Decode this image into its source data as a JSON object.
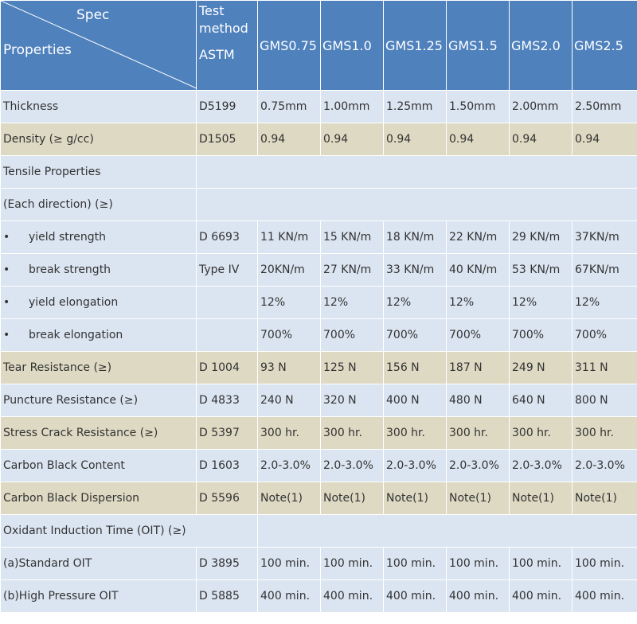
{
  "header": {
    "spec": "Spec",
    "properties": "Properties",
    "test_method_1": "Test",
    "test_method_2": "method",
    "test_method_3": "ASTM",
    "grades": [
      "GMS0.75",
      "GMS1.0",
      "GMS1.25",
      "GMS1.5",
      "GMS2.0",
      "GMS2.5"
    ]
  },
  "rows": {
    "thickness": {
      "label": "Thickness",
      "method": "D5199",
      "values": [
        "0.75mm",
        "1.00mm",
        "1.25mm",
        "1.50mm",
        "2.00mm",
        "2.50mm"
      ]
    },
    "density": {
      "label": "Density (≥ g/cc)",
      "method": "D1505",
      "values": [
        "0.94",
        "0.94",
        "0.94",
        "0.94",
        "0.94",
        "0.94"
      ]
    },
    "tensile_title": {
      "label": "Tensile Properties"
    },
    "each_direction": {
      "label": "(Each direction) (≥)"
    },
    "yield_strength": {
      "bullet": "•",
      "label": "yield strength",
      "method": "D 6693",
      "values": [
        "11 KN/m",
        "15 KN/m",
        "18 KN/m",
        "22 KN/m",
        "29 KN/m",
        "37KN/m"
      ]
    },
    "break_strength": {
      "bullet": "•",
      "label": "break strength",
      "method": "Type IV",
      "values": [
        "20KN/m",
        "27 KN/m",
        "33 KN/m",
        "40 KN/m",
        "53 KN/m",
        "67KN/m"
      ]
    },
    "yield_elongation": {
      "bullet": "•",
      "label": "yield elongation",
      "values": [
        "12%",
        "12%",
        "12%",
        "12%",
        "12%",
        "12%"
      ]
    },
    "break_elongation": {
      "bullet": "•",
      "label": "break elongation",
      "values": [
        "700%",
        "700%",
        "700%",
        "700%",
        "700%",
        "700%"
      ]
    },
    "tear": {
      "label": "Tear Resistance (≥)",
      "method": "D 1004",
      "values": [
        "93 N",
        "125 N",
        "156 N",
        "187 N",
        "249 N",
        "311 N"
      ]
    },
    "puncture": {
      "label": "Puncture Resistance (≥)",
      "method": "D 4833",
      "values": [
        "240 N",
        "320 N",
        "400 N",
        "480 N",
        "640 N",
        "800 N"
      ]
    },
    "stress_crack": {
      "label": "Stress Crack Resistance (≥)",
      "method": "D 5397",
      "values": [
        "300 hr.",
        "300 hr.",
        "300 hr.",
        "300 hr.",
        "300 hr.",
        "300 hr."
      ]
    },
    "cb_content": {
      "label": "Carbon Black Content",
      "method": "D 1603",
      "values": [
        "2.0-3.0%",
        "2.0-3.0%",
        "2.0-3.0%",
        "2.0-3.0%",
        "2.0-3.0%",
        "2.0-3.0%"
      ]
    },
    "cb_dispersion": {
      "label": "Carbon Black Dispersion",
      "method": "D 5596",
      "values": [
        "Note(1)",
        "Note(1)",
        "Note(1)",
        "Note(1)",
        "Note(1)",
        "Note(1)"
      ]
    },
    "oit_title": {
      "label": "Oxidant Induction Time (OIT) (≥)"
    },
    "standard_oit": {
      "label": "(a)Standard OIT",
      "method": "D 3895",
      "values": [
        "100 min.",
        "100 min.",
        "100 min.",
        "100 min.",
        "100 min.",
        "100 min."
      ]
    },
    "hp_oit": {
      "label": "(b)High Pressure OIT",
      "method": "D 5885",
      "values": [
        "400 min.",
        "400 min.",
        "400 min.",
        "400 min.",
        "400 min.",
        "400 min."
      ]
    }
  },
  "colors": {
    "header": "#4f81bd",
    "band_tan": "#ddd9c3",
    "band_blue": "#dbe5f1"
  }
}
